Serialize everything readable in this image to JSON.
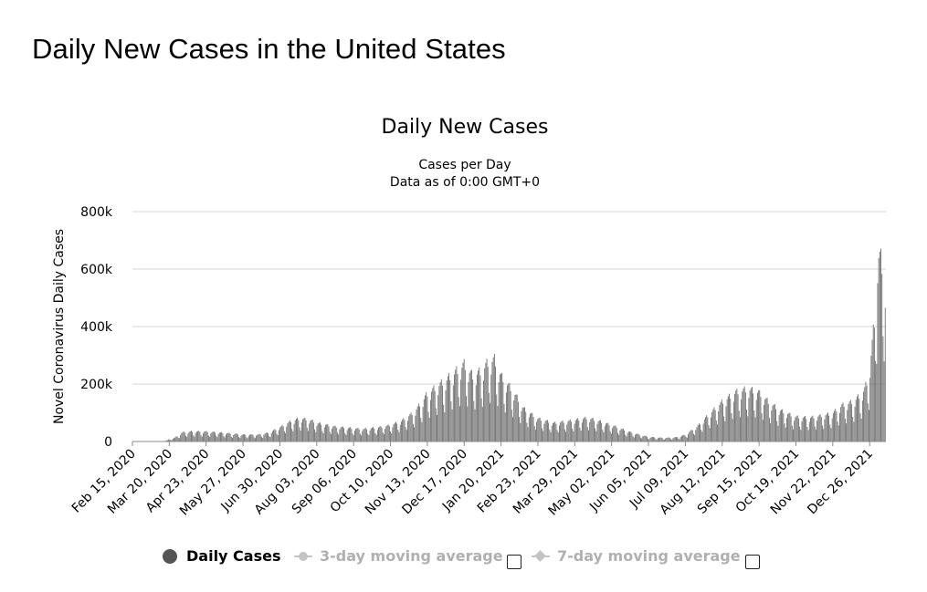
{
  "page": {
    "title": "Daily New Cases in the United States"
  },
  "chart_data": {
    "type": "bar",
    "title": "Daily New Cases",
    "subtitle": [
      "Cases per Day",
      "Data as of 0:00 GMT+0"
    ],
    "ylabel": "Novel Coronavirus Daily Cases",
    "xlabel": "",
    "ylim": [
      0,
      800000
    ],
    "yticks": [
      0,
      200000,
      400000,
      600000,
      800000
    ],
    "ytick_labels": [
      "0",
      "200k",
      "400k",
      "600k",
      "800k"
    ],
    "x_start": "2020-02-15",
    "x_end": "2022-01-10",
    "xtick_labels": [
      "Feb 15, 2020",
      "Mar 20, 2020",
      "Apr 23, 2020",
      "May 27, 2020",
      "Jun 30, 2020",
      "Aug 03, 2020",
      "Sep 06, 2020",
      "Oct 10, 2020",
      "Nov 13, 2020",
      "Dec 17, 2020",
      "Jan 20, 2021",
      "Feb 23, 2021",
      "Mar 29, 2021",
      "May 02, 2021",
      "Jun 05, 2021",
      "Jul 09, 2021",
      "Aug 12, 2021",
      "Sep 15, 2021",
      "Oct 19, 2021",
      "Nov 22, 2021",
      "Dec 26, 2021"
    ],
    "grid": true,
    "legend_position": "bottom",
    "bar_color": "#6e6e6e",
    "series": [
      {
        "name": "Daily Cases",
        "visible": true,
        "x": [
          "2020-02-15",
          "2020-03-01",
          "2020-03-15",
          "2020-03-25",
          "2020-04-01",
          "2020-04-10",
          "2020-04-24",
          "2020-05-10",
          "2020-05-27",
          "2020-06-10",
          "2020-06-20",
          "2020-07-01",
          "2020-07-10",
          "2020-07-18",
          "2020-07-25",
          "2020-08-05",
          "2020-08-20",
          "2020-09-06",
          "2020-09-15",
          "2020-10-01",
          "2020-10-10",
          "2020-10-20",
          "2020-11-01",
          "2020-11-13",
          "2020-11-25",
          "2020-12-05",
          "2020-12-17",
          "2020-12-25",
          "2021-01-02",
          "2021-01-08",
          "2021-01-14",
          "2021-01-20",
          "2021-02-01",
          "2021-02-10",
          "2021-02-23",
          "2021-03-10",
          "2021-03-29",
          "2021-04-10",
          "2021-04-20",
          "2021-05-02",
          "2021-05-20",
          "2021-06-05",
          "2021-06-20",
          "2021-07-01",
          "2021-07-09",
          "2021-07-20",
          "2021-08-01",
          "2021-08-12",
          "2021-08-25",
          "2021-09-05",
          "2021-09-15",
          "2021-09-25",
          "2021-10-05",
          "2021-10-19",
          "2021-11-01",
          "2021-11-22",
          "2021-12-01",
          "2021-12-10",
          "2021-12-18",
          "2021-12-22",
          "2021-12-26",
          "2021-12-29",
          "2022-01-01",
          "2022-01-03",
          "2022-01-05",
          "2022-01-07",
          "2022-01-10"
        ],
        "y": [
          0,
          100,
          1500,
          12000,
          28000,
          31000,
          30000,
          26000,
          21000,
          21000,
          27000,
          45000,
          62000,
          70000,
          68000,
          55000,
          45000,
          40000,
          38000,
          44000,
          50000,
          62000,
          90000,
          145000,
          175000,
          200000,
          235000,
          200000,
          215000,
          240000,
          250000,
          200000,
          150000,
          100000,
          70000,
          56000,
          65000,
          72000,
          63000,
          50000,
          28000,
          14000,
          11000,
          13000,
          20000,
          45000,
          85000,
          120000,
          150000,
          160000,
          150000,
          118000,
          95000,
          75000,
          72000,
          85000,
          110000,
          120000,
          140000,
          160000,
          200000,
          300000,
          400000,
          580000,
          560000,
          540000,
          490000
        ]
      },
      {
        "name": "3-day moving average",
        "visible": false
      },
      {
        "name": "7-day moving average",
        "visible": false
      }
    ]
  },
  "legend": {
    "items": [
      {
        "label": "Daily Cases",
        "icon": "circle-marker-icon",
        "active": true
      },
      {
        "label": "3-day moving average",
        "icon": "line-circle-marker-icon",
        "active": false
      },
      {
        "label": "7-day moving average",
        "icon": "line-diamond-marker-icon",
        "active": false
      }
    ]
  },
  "colors": {
    "bar": "#6e6e6e",
    "grid": "#d6d6d6",
    "axis": "#8a8a8a",
    "inactive": "#b0b0b0"
  }
}
